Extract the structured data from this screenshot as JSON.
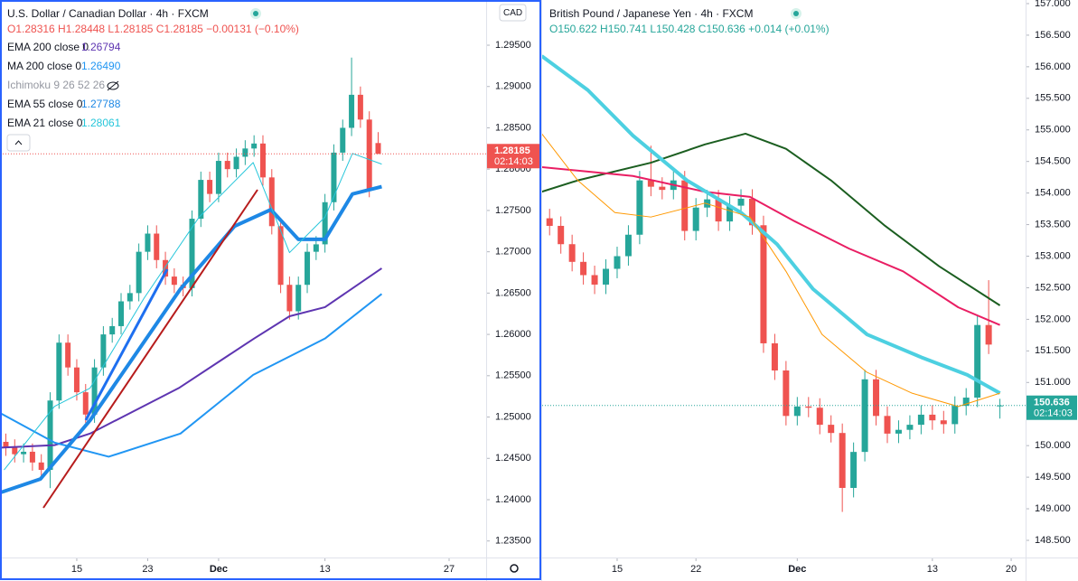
{
  "chart_data": [
    {
      "type": "candlestick",
      "title": "U.S. Dollar / Canadian Dollar · 4h · FXCM",
      "ohlc_text": "O1.28316 H1.28448 L1.28185 C1.28185 −0.00131 (−0.10%)",
      "hidden_indicator": "Ichimoku 9 26 52 26",
      "currency": "CAD",
      "price_label": "1.28185",
      "countdown": "02:14:03",
      "up_color": "#26a69a",
      "down_color": "#ef5350",
      "grid": false,
      "xlim": [
        6.34,
        61.18
      ],
      "xticks": [
        15,
        23,
        {
          "value": 31,
          "label": "Dec"
        },
        {
          "value": 43,
          "label": "13"
        },
        {
          "value": 57,
          "label": "27"
        }
      ],
      "ylim": [
        1.233,
        1.30047
      ],
      "yticks": [
        {
          "value": 1.235,
          "label": "1.23500"
        },
        {
          "value": 1.24,
          "label": "1.24000"
        },
        {
          "value": 1.245,
          "label": "1.24500"
        },
        {
          "value": 1.25,
          "label": "1.25000"
        },
        {
          "value": 1.255,
          "label": "1.25500"
        },
        {
          "value": 1.26,
          "label": "1.26000"
        },
        {
          "value": 1.265,
          "label": "1.26500"
        },
        {
          "value": 1.27,
          "label": "1.27000"
        },
        {
          "value": 1.275,
          "label": "1.27500"
        },
        {
          "value": 1.28,
          "label": "1.28000"
        },
        {
          "value": 1.285,
          "label": "1.28500"
        },
        {
          "value": 1.29,
          "label": "1.29000"
        },
        {
          "value": 1.295,
          "label": "1.29500"
        }
      ],
      "x": [
        7,
        8,
        9,
        10,
        11,
        12,
        13,
        14,
        15,
        16,
        17,
        18,
        19,
        20,
        21,
        22,
        23,
        24,
        25,
        26,
        27,
        28,
        29,
        30,
        31,
        32,
        33,
        34,
        35,
        36,
        37,
        38,
        39,
        40,
        41,
        42,
        43,
        44,
        45,
        46,
        47,
        48,
        49
      ],
      "open": [
        1.247,
        1.2463,
        1.2455,
        1.2458,
        1.2445,
        1.2436,
        1.252,
        1.259,
        1.256,
        1.253,
        1.2503,
        1.256,
        1.26,
        1.261,
        1.264,
        1.265,
        1.27,
        1.2722,
        1.269,
        1.267,
        1.266,
        1.2656,
        1.274,
        1.2787,
        1.277,
        1.281,
        1.28,
        1.2815,
        1.2825,
        1.2831,
        1.279,
        1.2731,
        1.266,
        1.2628,
        1.266,
        1.27,
        1.2709,
        1.276,
        1.282,
        1.285,
        1.289,
        1.286,
        1.28316
      ],
      "high": [
        1.248,
        1.2473,
        1.2468,
        1.2468,
        1.2455,
        1.253,
        1.26,
        1.26,
        1.257,
        1.254,
        1.257,
        1.261,
        1.262,
        1.265,
        1.266,
        1.271,
        1.2732,
        1.2732,
        1.27,
        1.268,
        1.267,
        1.275,
        1.2797,
        1.2797,
        1.282,
        1.282,
        1.2825,
        1.2835,
        1.2841,
        1.2841,
        1.28,
        1.2741,
        1.267,
        1.267,
        1.271,
        1.2719,
        1.277,
        1.283,
        1.286,
        1.2935,
        1.29,
        1.287,
        1.28448
      ],
      "low": [
        1.2453,
        1.2445,
        1.2445,
        1.2435,
        1.2426,
        1.2414,
        1.251,
        1.255,
        1.252,
        1.2493,
        1.2493,
        1.255,
        1.259,
        1.26,
        1.263,
        1.264,
        1.269,
        1.268,
        1.266,
        1.265,
        1.2646,
        1.2646,
        1.273,
        1.276,
        1.276,
        1.279,
        1.279,
        1.2805,
        1.2815,
        1.278,
        1.2721,
        1.265,
        1.2618,
        1.2618,
        1.265,
        1.269,
        1.2699,
        1.275,
        1.281,
        1.284,
        1.285,
        1.2766,
        1.28185
      ],
      "close": [
        1.2463,
        1.2455,
        1.2458,
        1.2445,
        1.2436,
        1.252,
        1.259,
        1.256,
        1.253,
        1.2503,
        1.256,
        1.26,
        1.261,
        1.264,
        1.265,
        1.27,
        1.2722,
        1.269,
        1.267,
        1.266,
        1.2656,
        1.274,
        1.2787,
        1.277,
        1.281,
        1.28,
        1.2815,
        1.2825,
        1.2831,
        1.279,
        1.2731,
        1.266,
        1.2628,
        1.266,
        1.27,
        1.2709,
        1.276,
        1.282,
        1.285,
        1.289,
        1.286,
        1.2776,
        1.28185
      ],
      "series": [
        {
          "name": "EMA 200 close 0",
          "value_label": "1.26794",
          "color": "#5e35b1",
          "width": 2,
          "x": [
            6.5,
            12.5,
            16.5,
            26.5,
            35,
            39,
            43,
            49.4
          ],
          "values": [
            1.2463,
            1.2466,
            1.248,
            1.2535,
            1.2595,
            1.2622,
            1.2633,
            1.268
          ]
        },
        {
          "name": "MA 200 close 0",
          "value_label": "1.26490",
          "color": "#2196f3",
          "width": 2,
          "x": [
            6.5,
            12.5,
            18.6,
            26.7,
            34.9,
            43,
            49.4
          ],
          "values": [
            1.2504,
            1.2469,
            1.2452,
            1.248,
            1.2551,
            1.2595,
            1.2649
          ]
        },
        {
          "name": "EMA 55 close 0",
          "value_label": "1.27788",
          "color": "#1e88e5",
          "width": 4,
          "x": [
            6.5,
            10.9,
            16.5,
            26.7,
            32.8,
            36.9,
            40,
            43,
            46.1,
            49.4
          ],
          "values": [
            1.2409,
            1.2425,
            1.2496,
            1.2655,
            1.2731,
            1.2751,
            1.2715,
            1.2715,
            1.277,
            1.27788
          ]
        },
        {
          "name": "EMA 21 close 0",
          "value_label": "1.28061",
          "color": "#26c6da",
          "width": 1,
          "x": [
            6.8,
            12.5,
            16.5,
            22.6,
            28.8,
            34.9,
            39,
            43,
            46.1,
            49.4
          ],
          "values": [
            1.2436,
            1.2513,
            1.2535,
            1.2644,
            1.2742,
            1.2808,
            1.2699,
            1.2742,
            1.2819,
            1.28061
          ]
        }
      ]
    },
    {
      "type": "candlestick",
      "title": "British Pound / Japanese Yen · 4h · FXCM",
      "ohlc_text": "O150.622 H150.741 L150.428 C150.636 +0.014 (+0.01%)",
      "price_label": "150.636",
      "countdown": "02:14:03",
      "up_color": "#26a69a",
      "down_color": "#ef5350",
      "grid": false,
      "xlim": [
        8.34,
        51.28
      ],
      "xticks": [
        15,
        22,
        {
          "value": 31,
          "label": "Dec"
        },
        {
          "value": 43,
          "label": "13"
        },
        {
          "value": 50,
          "label": "20"
        }
      ],
      "ylim": [
        148.228,
        157.057
      ],
      "yticks": [
        {
          "value": 148.5,
          "label": "148.500"
        },
        {
          "value": 149,
          "label": "149.000"
        },
        {
          "value": 149.5,
          "label": "149.500"
        },
        {
          "value": 150,
          "label": "150.000"
        },
        {
          "value": 150.5,
          "label": "150.500"
        },
        {
          "value": 151,
          "label": "151.000"
        },
        {
          "value": 151.5,
          "label": "151.500"
        },
        {
          "value": 152,
          "label": "152.000"
        },
        {
          "value": 152.5,
          "label": "152.500"
        },
        {
          "value": 153,
          "label": "153.000"
        },
        {
          "value": 153.5,
          "label": "153.500"
        },
        {
          "value": 154,
          "label": "154.000"
        },
        {
          "value": 154.5,
          "label": "154.500"
        },
        {
          "value": 155,
          "label": "155.000"
        },
        {
          "value": 155.5,
          "label": "155.500"
        },
        {
          "value": 156,
          "label": "156.000"
        },
        {
          "value": 156.5,
          "label": "156.500"
        },
        {
          "value": 157,
          "label": "157.000"
        }
      ],
      "x": [
        9,
        10,
        11,
        12,
        13,
        14,
        15,
        16,
        17,
        18,
        19,
        20,
        21,
        22,
        23,
        24,
        25,
        26,
        27,
        28,
        29,
        30,
        31,
        32,
        33,
        34,
        35,
        36,
        37,
        38,
        39,
        40,
        41,
        42,
        43,
        44,
        45,
        46,
        47,
        48,
        49
      ],
      "open": [
        153.6,
        153.48,
        153.19,
        152.91,
        152.7,
        152.55,
        152.8,
        153.0,
        153.34,
        154.2,
        154.1,
        154.05,
        154.2,
        153.4,
        153.77,
        153.9,
        153.55,
        153.8,
        153.91,
        153.49,
        151.62,
        151.19,
        150.47,
        150.62,
        150.6,
        150.33,
        150.2,
        149.33,
        149.9,
        151.05,
        150.47,
        150.19,
        150.25,
        150.33,
        150.49,
        150.4,
        150.34,
        150.63,
        150.76,
        151.91,
        150.622
      ],
      "high": [
        153.75,
        153.63,
        153.34,
        153.06,
        152.85,
        152.95,
        153.15,
        153.49,
        154.35,
        154.75,
        154.25,
        154.35,
        154.35,
        153.92,
        154.05,
        154.05,
        153.95,
        154.06,
        154.06,
        153.64,
        151.77,
        151.34,
        150.77,
        150.77,
        150.75,
        150.48,
        150.35,
        150.05,
        151.2,
        151.2,
        150.62,
        150.4,
        150.48,
        150.64,
        150.64,
        150.55,
        150.78,
        150.91,
        152.06,
        152.62,
        150.741
      ],
      "low": [
        153.33,
        153.04,
        152.76,
        152.55,
        152.4,
        152.4,
        152.65,
        152.85,
        153.19,
        153.95,
        153.9,
        153.9,
        153.25,
        153.25,
        153.62,
        153.4,
        153.4,
        153.65,
        153.34,
        151.47,
        151.04,
        150.32,
        150.32,
        150.45,
        150.18,
        150.05,
        148.95,
        149.18,
        149.75,
        150.32,
        150.04,
        150.04,
        150.1,
        150.18,
        150.25,
        150.19,
        150.19,
        150.48,
        150.61,
        151.45,
        150.428
      ],
      "close": [
        153.48,
        153.19,
        152.91,
        152.7,
        152.55,
        152.8,
        153.0,
        153.34,
        154.2,
        154.1,
        154.05,
        154.2,
        153.4,
        153.77,
        153.9,
        153.55,
        153.8,
        153.91,
        153.49,
        151.62,
        151.19,
        150.47,
        150.62,
        150.6,
        150.33,
        150.2,
        149.33,
        149.9,
        151.05,
        150.47,
        150.19,
        150.25,
        150.33,
        150.49,
        150.4,
        150.34,
        150.63,
        150.76,
        151.91,
        151.6,
        150.636
      ],
      "series": [
        {
          "color": "#1b5e20",
          "width": 2,
          "x": [
            8.3,
            11.5,
            18,
            22.8,
            26.4,
            30,
            34,
            38.8,
            43.6,
            49.0
          ],
          "values": [
            154.02,
            154.2,
            154.48,
            154.77,
            154.94,
            154.7,
            154.2,
            153.48,
            152.84,
            152.22
          ]
        },
        {
          "color": "#e91e63",
          "width": 2,
          "x": [
            8.3,
            16.4,
            22.8,
            26.8,
            30.8,
            35.6,
            40.4,
            45.3,
            49.0
          ],
          "values": [
            154.41,
            154.27,
            154.02,
            153.94,
            153.55,
            153.12,
            152.76,
            152.19,
            151.91
          ]
        },
        {
          "color": "#4dd0e1",
          "width": 4,
          "x": [
            8.3,
            12.4,
            16.4,
            21.2,
            26,
            29.2,
            32.4,
            37.2,
            42,
            46.1,
            49.0
          ],
          "values": [
            156.17,
            155.63,
            154.91,
            154.2,
            153.69,
            153.19,
            152.48,
            151.76,
            151.4,
            151.12,
            150.83
          ]
        },
        {
          "color": "#ff9800",
          "width": 1,
          "x": [
            8.3,
            11.5,
            14.8,
            18,
            22.8,
            26.8,
            30,
            33.2,
            37.2,
            41.2,
            45.3,
            49.0
          ],
          "values": [
            154.94,
            154.2,
            153.69,
            153.62,
            153.84,
            153.62,
            152.76,
            151.76,
            151.16,
            150.83,
            150.62,
            150.83
          ]
        }
      ]
    }
  ]
}
